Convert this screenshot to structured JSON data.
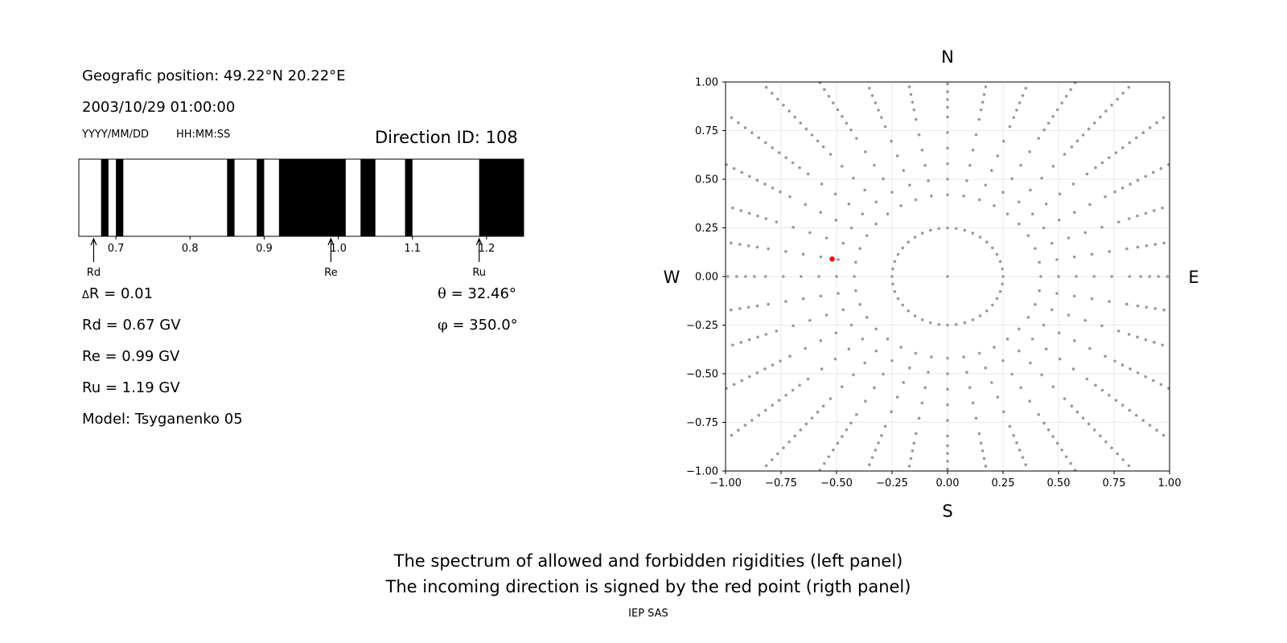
{
  "left_panel": {
    "position_text": "Geografic position: 49.22°N 20.22°E",
    "datetime_text": "2003/10/29 01:00:00",
    "date_format_label": "YYYY/MM/DD",
    "time_format_label": "HH:MM:SS",
    "direction_text": "Direction ID: 108",
    "delta_r_symbol": "Δ",
    "delta_r_text": "R = 0.01",
    "rd_text": "Rd = 0.67 GV",
    "re_text": "Re = 0.99 GV",
    "ru_text": "Ru = 1.19 GV",
    "model_text": "Model: Tsyganenko 05",
    "theta_symbol": "θ",
    "theta_text": " = 32.46°",
    "phi_symbol": "φ",
    "phi_text": " = 350.0°"
  },
  "chart_data": [
    {
      "type": "bar",
      "description": "Spectrum of allowed (white) and forbidden (black) rigidities",
      "xlim": [
        0.65,
        1.25
      ],
      "xticks": [
        0.7,
        0.8,
        0.9,
        1.0,
        1.1,
        1.2
      ],
      "xtick_labels": [
        "0.7",
        "0.8",
        "0.9",
        "1.0",
        "1.1",
        "1.2"
      ],
      "forbidden_intervals": [
        [
          0.68,
          0.69
        ],
        [
          0.7,
          0.71
        ],
        [
          0.85,
          0.86
        ],
        [
          0.89,
          0.9
        ],
        [
          0.92,
          1.01
        ],
        [
          1.03,
          1.05
        ],
        [
          1.09,
          1.1
        ],
        [
          1.19,
          1.25
        ]
      ],
      "markers": [
        {
          "label": "Rd",
          "value": 0.67
        },
        {
          "label": "Re",
          "value": 0.99
        },
        {
          "label": "Ru",
          "value": 1.19
        }
      ],
      "colors": {
        "forbidden": "#000000",
        "allowed": "#ffffff"
      }
    },
    {
      "type": "scatter",
      "xlim": [
        -1.0,
        1.0
      ],
      "ylim": [
        -1.0,
        1.0
      ],
      "xticks": [
        -1.0,
        -0.75,
        -0.5,
        -0.25,
        0.0,
        0.25,
        0.5,
        0.75,
        1.0
      ],
      "yticks": [
        -1.0,
        -0.75,
        -0.5,
        -0.25,
        0.0,
        0.25,
        0.5,
        0.75,
        1.0
      ],
      "xtick_labels": [
        "−1.00",
        "−0.75",
        "−0.50",
        "−0.25",
        "0.00",
        "0.25",
        "0.50",
        "0.75",
        "1.00"
      ],
      "ytick_labels": [
        "−1.00",
        "−0.75",
        "−0.50",
        "−0.25",
        "0.00",
        "0.25",
        "0.50",
        "0.75",
        "1.00"
      ],
      "grid": true,
      "directions": {
        "north": "N",
        "south": "S",
        "west": "W",
        "east": "E"
      },
      "grid_series": {
        "ring_radii": [
          0.25,
          0.42,
          0.5,
          0.58,
          0.66,
          0.74,
          0.82,
          0.87,
          0.91,
          0.95,
          0.99,
          1.03,
          1.07,
          1.11,
          1.15,
          1.19,
          1.23,
          1.27,
          1.31,
          1.35,
          1.39,
          1.43,
          1.47,
          1.51,
          1.55,
          1.59,
          1.63,
          1.67,
          1.71,
          1.75,
          1.79,
          1.83,
          1.87,
          1.91,
          1.95,
          1.99,
          2.03
        ],
        "inner_ring_points": 40,
        "spoke_angle_step_deg": 10,
        "center": [
          0.0,
          0.0
        ],
        "color": "#999999"
      },
      "highlight_point": {
        "x": -0.52,
        "y": 0.09,
        "color": "#ff0000"
      }
    }
  ],
  "caption": {
    "line1": "The spectrum of allowed and forbidden rigidities (left panel)",
    "line2": "The incoming direction is signed by the red point (rigth panel)",
    "credit": "IEP SAS"
  }
}
